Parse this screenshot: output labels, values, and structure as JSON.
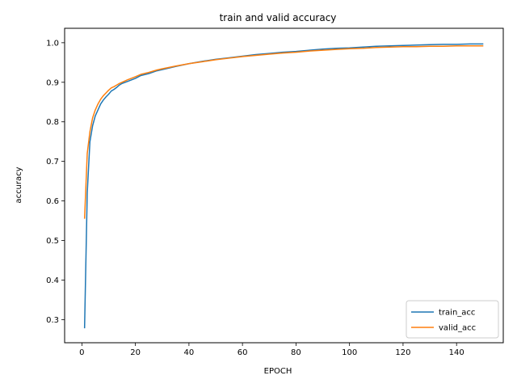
{
  "chart_data": {
    "type": "line",
    "title": "train and valid accuracy",
    "xlabel": "EPOCH",
    "ylabel": "accuracy",
    "xlim": [
      -6.45,
      157.45
    ],
    "ylim": [
      0.2415,
      1.0365
    ],
    "xticks": [
      0,
      20,
      40,
      60,
      80,
      100,
      120,
      140
    ],
    "xtick_labels": [
      "0",
      "20",
      "40",
      "60",
      "80",
      "100",
      "120",
      "140"
    ],
    "yticks": [
      0.3,
      0.4,
      0.5,
      0.6,
      0.7,
      0.8,
      0.9,
      1.0
    ],
    "ytick_labels": [
      "0.3",
      "0.4",
      "0.5",
      "0.6",
      "0.7",
      "0.8",
      "0.9",
      "1.0"
    ],
    "grid": false,
    "legend_position": "lower-right",
    "series": [
      {
        "name": "train_acc",
        "color": "#1f77b4",
        "points": [
          [
            1,
            0.278
          ],
          [
            2,
            0.62
          ],
          [
            3,
            0.75
          ],
          [
            4,
            0.79
          ],
          [
            5,
            0.815
          ],
          [
            6,
            0.83
          ],
          [
            7,
            0.845
          ],
          [
            8,
            0.855
          ],
          [
            9,
            0.863
          ],
          [
            10,
            0.87
          ],
          [
            11,
            0.878
          ],
          [
            12,
            0.882
          ],
          [
            13,
            0.887
          ],
          [
            14,
            0.893
          ],
          [
            15,
            0.897
          ],
          [
            17,
            0.902
          ],
          [
            20,
            0.91
          ],
          [
            22,
            0.917
          ],
          [
            25,
            0.922
          ],
          [
            28,
            0.929
          ],
          [
            30,
            0.932
          ],
          [
            35,
            0.94
          ],
          [
            40,
            0.947
          ],
          [
            45,
            0.953
          ],
          [
            50,
            0.958
          ],
          [
            55,
            0.962
          ],
          [
            60,
            0.966
          ],
          [
            65,
            0.97
          ],
          [
            70,
            0.973
          ],
          [
            75,
            0.976
          ],
          [
            80,
            0.978
          ],
          [
            85,
            0.981
          ],
          [
            90,
            0.984
          ],
          [
            95,
            0.986
          ],
          [
            100,
            0.987
          ],
          [
            105,
            0.989
          ],
          [
            110,
            0.991
          ],
          [
            115,
            0.992
          ],
          [
            120,
            0.993
          ],
          [
            125,
            0.994
          ],
          [
            130,
            0.995
          ],
          [
            135,
            0.996
          ],
          [
            140,
            0.996
          ],
          [
            145,
            0.997
          ],
          [
            150,
            0.997
          ]
        ]
      },
      {
        "name": "valid_acc",
        "color": "#ff7f0e",
        "points": [
          [
            1,
            0.555
          ],
          [
            2,
            0.72
          ],
          [
            3,
            0.775
          ],
          [
            4,
            0.81
          ],
          [
            5,
            0.83
          ],
          [
            6,
            0.845
          ],
          [
            7,
            0.857
          ],
          [
            8,
            0.866
          ],
          [
            9,
            0.873
          ],
          [
            10,
            0.88
          ],
          [
            11,
            0.886
          ],
          [
            12,
            0.889
          ],
          [
            13,
            0.893
          ],
          [
            14,
            0.897
          ],
          [
            15,
            0.9
          ],
          [
            17,
            0.906
          ],
          [
            20,
            0.914
          ],
          [
            22,
            0.92
          ],
          [
            25,
            0.925
          ],
          [
            28,
            0.931
          ],
          [
            30,
            0.934
          ],
          [
            35,
            0.941
          ],
          [
            40,
            0.947
          ],
          [
            45,
            0.952
          ],
          [
            50,
            0.957
          ],
          [
            55,
            0.961
          ],
          [
            60,
            0.965
          ],
          [
            65,
            0.968
          ],
          [
            70,
            0.971
          ],
          [
            75,
            0.974
          ],
          [
            80,
            0.976
          ],
          [
            85,
            0.979
          ],
          [
            90,
            0.981
          ],
          [
            95,
            0.983
          ],
          [
            100,
            0.985
          ],
          [
            105,
            0.986
          ],
          [
            110,
            0.988
          ],
          [
            115,
            0.989
          ],
          [
            120,
            0.99
          ],
          [
            125,
            0.99
          ],
          [
            130,
            0.991
          ],
          [
            135,
            0.991
          ],
          [
            140,
            0.992
          ],
          [
            145,
            0.992
          ],
          [
            150,
            0.992
          ]
        ]
      }
    ]
  }
}
